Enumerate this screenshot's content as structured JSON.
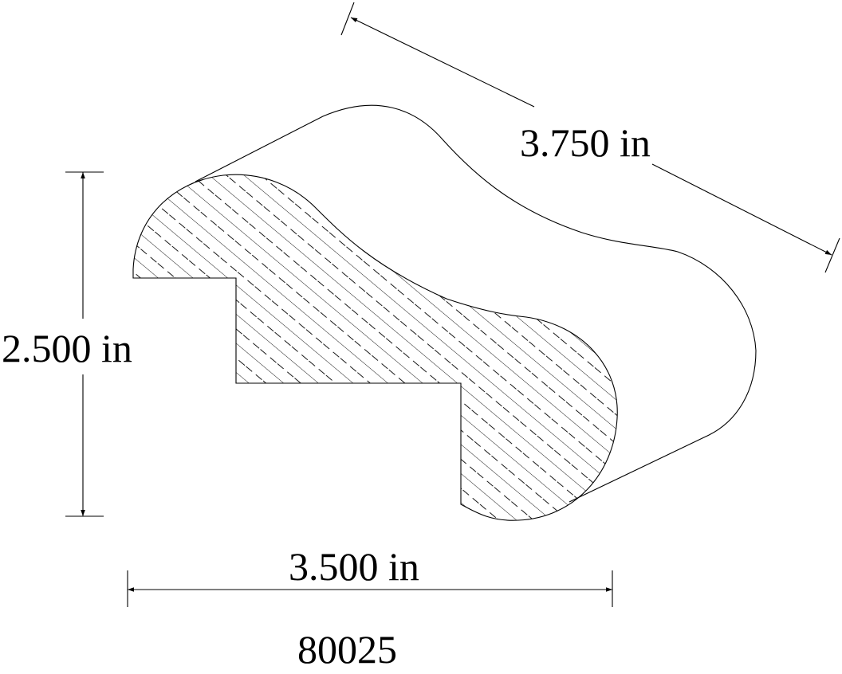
{
  "drawing": {
    "part_number": "80025",
    "dimensions": {
      "diagonal": "3.750 in",
      "height": "2.500 in",
      "width": "3.500 in"
    },
    "line_color": "#000000",
    "background_color": "#ffffff"
  }
}
